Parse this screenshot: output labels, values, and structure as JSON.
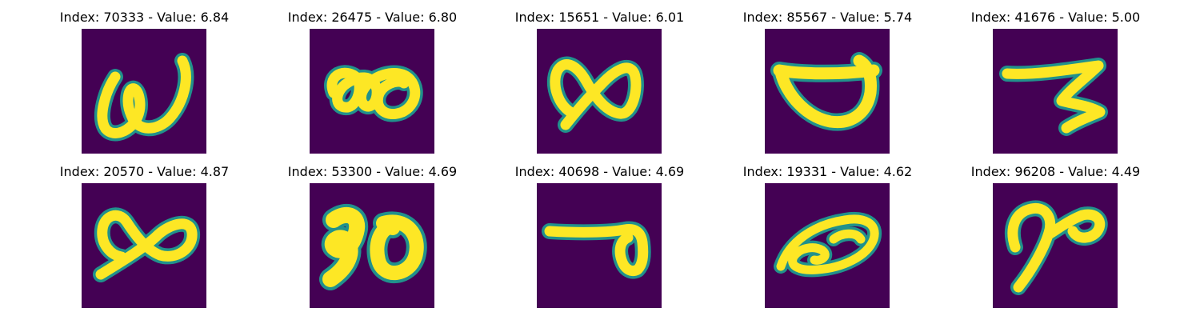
{
  "figure": {
    "colors": {
      "background": "#440154",
      "stroke_core": "#fde725",
      "stroke_edge": "#21918c"
    },
    "panels": [
      {
        "title": "Index: 70333 - Value: 6.84"
      },
      {
        "title": "Index: 26475 - Value: 6.80"
      },
      {
        "title": "Index: 15651 - Value: 6.01"
      },
      {
        "title": "Index: 85567 - Value: 5.74"
      },
      {
        "title": "Index: 41676 - Value: 5.00"
      },
      {
        "title": "Index: 20570 - Value: 4.87"
      },
      {
        "title": "Index: 53300 - Value: 4.69"
      },
      {
        "title": "Index: 40698 - Value: 4.69"
      },
      {
        "title": "Index: 19331 - Value: 4.62"
      },
      {
        "title": "Index: 96208 - Value: 4.49"
      }
    ]
  }
}
